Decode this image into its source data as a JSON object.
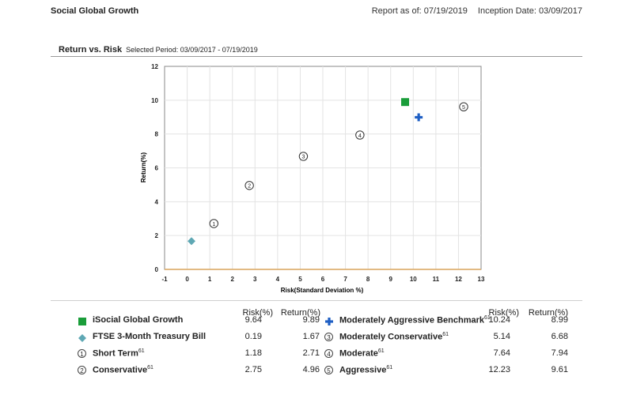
{
  "header": {
    "title": "Social Global Growth",
    "report_as_of": "Report as of: 07/19/2019",
    "inception": "Inception Date: 03/09/2017"
  },
  "section": {
    "title": "Return vs. Risk",
    "period": "Selected Period:  03/09/2017 - 07/19/2019"
  },
  "colors": {
    "fund": "#1a9d3a",
    "benchmark": "#1f5fc4",
    "treasury": "#5fa8b4",
    "axis_x": "#d9a45a"
  },
  "chart_data": {
    "type": "scatter",
    "xlabel": "Risk(Standard Deviation %)",
    "ylabel": "Return(%)",
    "xlim": [
      -1,
      13
    ],
    "ylim": [
      0,
      12
    ],
    "xticks": [
      -1,
      0,
      1,
      2,
      3,
      4,
      5,
      6,
      7,
      8,
      9,
      10,
      11,
      12,
      13
    ],
    "yticks": [
      0,
      2,
      4,
      6,
      8,
      10,
      12
    ],
    "grid": true,
    "points": [
      {
        "name": "iSocial Global Growth",
        "x": 9.64,
        "y": 9.89,
        "marker": "square",
        "color": "#1a9d3a"
      },
      {
        "name": "FTSE 3-Month Treasury Bill",
        "x": 0.19,
        "y": 1.67,
        "marker": "diamond",
        "color": "#5fa8b4"
      },
      {
        "name": "Short Term",
        "x": 1.18,
        "y": 2.71,
        "marker": "circle",
        "label": "1"
      },
      {
        "name": "Conservative",
        "x": 2.75,
        "y": 4.96,
        "marker": "circle",
        "label": "2"
      },
      {
        "name": "Moderately Aggressive Benchmark",
        "x": 10.24,
        "y": 8.99,
        "marker": "cross",
        "color": "#1f5fc4"
      },
      {
        "name": "Moderately Conservative",
        "x": 5.14,
        "y": 6.68,
        "marker": "circle",
        "label": "3"
      },
      {
        "name": "Moderate",
        "x": 7.64,
        "y": 7.94,
        "marker": "circle",
        "label": "4"
      },
      {
        "name": "Aggressive",
        "x": 12.23,
        "y": 9.61,
        "marker": "circle",
        "label": "5"
      }
    ]
  },
  "legend": {
    "risk_header": "Risk(%)",
    "return_header": "Return(%)",
    "left": [
      {
        "name": "iSocial Global Growth",
        "sup": "",
        "risk": "9.64",
        "ret": "9.89",
        "marker": "square",
        "label": ""
      },
      {
        "name": "FTSE 3-Month Treasury Bill",
        "sup": "",
        "risk": "0.19",
        "ret": "1.67",
        "marker": "diamond",
        "label": ""
      },
      {
        "name": "Short Term",
        "sup": "61",
        "risk": "1.18",
        "ret": "2.71",
        "marker": "circle",
        "label": "1"
      },
      {
        "name": "Conservative",
        "sup": "61",
        "risk": "2.75",
        "ret": "4.96",
        "marker": "circle",
        "label": "2"
      }
    ],
    "right": [
      {
        "name": "Moderately Aggressive Benchmark",
        "sup": "61",
        "risk": "10.24",
        "ret": "8.99",
        "marker": "cross",
        "label": ""
      },
      {
        "name": "Moderately Conservative",
        "sup": "61",
        "risk": "5.14",
        "ret": "6.68",
        "marker": "circle",
        "label": "3"
      },
      {
        "name": "Moderate",
        "sup": "61",
        "risk": "7.64",
        "ret": "7.94",
        "marker": "circle",
        "label": "4"
      },
      {
        "name": "Aggressive",
        "sup": "61",
        "risk": "12.23",
        "ret": "9.61",
        "marker": "circle",
        "label": "5"
      }
    ]
  }
}
